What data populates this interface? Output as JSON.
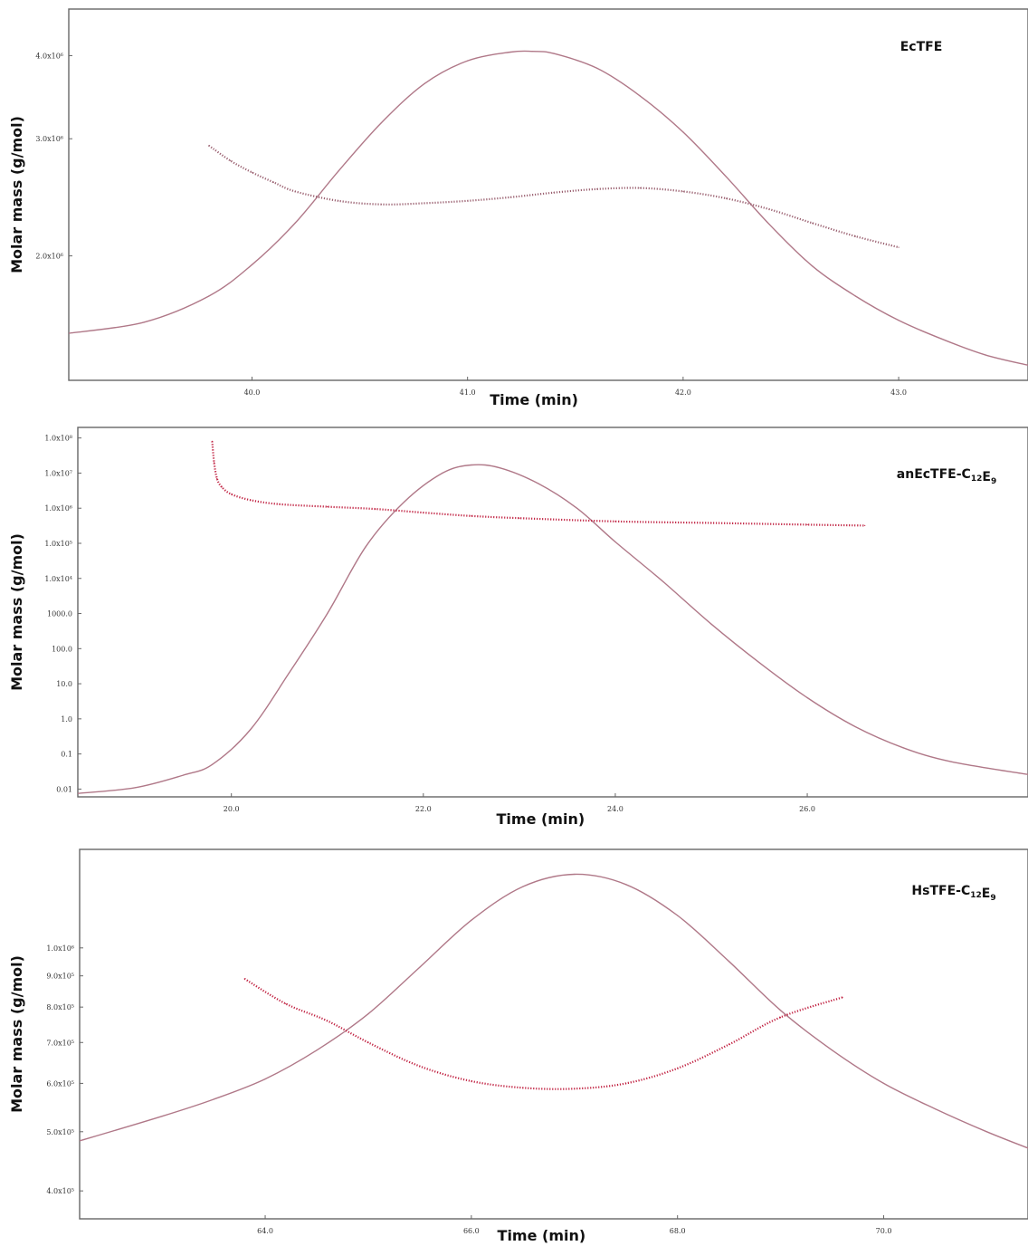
{
  "chart_data": [
    {
      "type": "line",
      "title": "EcTFE",
      "title_parts": [
        {
          "t": "EcTFE",
          "sub": false
        }
      ],
      "xlabel": "Time (min)",
      "ylabel": "Molar mass (g/mol)",
      "x_ticks": [
        {
          "value": 40.0,
          "label": "40.0"
        },
        {
          "value": 41.0,
          "label": "41.0"
        },
        {
          "value": 42.0,
          "label": "42.0"
        },
        {
          "value": 43.0,
          "label": "43.0"
        }
      ],
      "y_ticks": [
        {
          "value": 2000000,
          "label": "2.0x10⁶"
        },
        {
          "value": 3000000,
          "label": "3.0x10⁶"
        },
        {
          "value": 4000000,
          "label": "4.0x10⁶"
        }
      ],
      "y_scale": "log",
      "xlim": [
        39.15,
        43.6
      ],
      "ylim": [
        1300000,
        4700000
      ],
      "series": [
        {
          "role": "signal-trace",
          "color": "#b07888",
          "style": "line",
          "x": [
            39.15,
            39.5,
            39.8,
            40.0,
            40.2,
            40.4,
            40.6,
            40.8,
            41.0,
            41.2,
            41.3,
            41.4,
            41.6,
            41.8,
            42.0,
            42.2,
            42.4,
            42.6,
            42.8,
            43.0,
            43.2,
            43.4,
            43.6
          ],
          "y": [
            1530000,
            1590000,
            1740000,
            1940000,
            2240000,
            2680000,
            3170000,
            3630000,
            3930000,
            4050000,
            4060000,
            4030000,
            3830000,
            3480000,
            3070000,
            2630000,
            2230000,
            1930000,
            1740000,
            1600000,
            1500000,
            1420000,
            1370000
          ]
        },
        {
          "role": "molar-mass",
          "color": "#9a6070",
          "style": "dots",
          "x": [
            39.8,
            39.9,
            40.0,
            40.1,
            40.2,
            40.4,
            40.6,
            40.8,
            41.0,
            41.2,
            41.4,
            41.6,
            41.8,
            42.0,
            42.2,
            42.4,
            42.6,
            42.8,
            43.0
          ],
          "y": [
            2930000,
            2780000,
            2670000,
            2580000,
            2500000,
            2420000,
            2390000,
            2400000,
            2420000,
            2450000,
            2490000,
            2520000,
            2530000,
            2500000,
            2440000,
            2350000,
            2240000,
            2140000,
            2060000
          ]
        }
      ]
    },
    {
      "type": "line",
      "title": "anEcTFE-C12E9",
      "title_parts": [
        {
          "t": "anEcTFE-C",
          "sub": false
        },
        {
          "t": "12",
          "sub": true
        },
        {
          "t": "E",
          "sub": false
        },
        {
          "t": "9",
          "sub": true
        }
      ],
      "xlabel": "Time (min)",
      "ylabel": "Molar mass (g/mol)",
      "x_ticks": [
        {
          "value": 20.0,
          "label": "20.0"
        },
        {
          "value": 22.0,
          "label": "22.0"
        },
        {
          "value": 24.0,
          "label": "24.0"
        },
        {
          "value": 26.0,
          "label": "26.0"
        }
      ],
      "y_ticks": [
        {
          "value": 0.01,
          "label": "0.01"
        },
        {
          "value": 0.1,
          "label": "0.1"
        },
        {
          "value": 1,
          "label": "1.0"
        },
        {
          "value": 10,
          "label": "10.0"
        },
        {
          "value": 100,
          "label": "100.0"
        },
        {
          "value": 1000,
          "label": "1000.0"
        },
        {
          "value": 10000,
          "label": "1.0x10⁴"
        },
        {
          "value": 100000,
          "label": "1.0x10⁵"
        },
        {
          "value": 1000000,
          "label": "1.0x10⁶"
        },
        {
          "value": 10000000,
          "label": "1.0x10⁷"
        },
        {
          "value": 100000000,
          "label": "1.0x10⁸"
        }
      ],
      "y_scale": "log",
      "xlim": [
        18.4,
        28.3
      ],
      "ylim": [
        0.006,
        200000000
      ],
      "series": [
        {
          "role": "signal-trace",
          "color": "#b07888",
          "style": "line",
          "x": [
            18.4,
            19.0,
            19.5,
            19.8,
            20.2,
            20.6,
            21.0,
            21.4,
            21.8,
            22.2,
            22.5,
            22.8,
            23.2,
            23.6,
            24.0,
            24.5,
            25.0,
            25.5,
            26.0,
            26.5,
            27.0,
            27.5,
            28.3
          ],
          "y": [
            0.0075,
            0.011,
            0.025,
            0.05,
            0.5,
            20,
            1000,
            80000,
            1500000,
            10000000,
            17000000,
            14000000,
            5000000,
            1000000,
            110000,
            8000,
            500,
            40,
            4,
            0.6,
            0.15,
            0.06,
            0.026
          ]
        },
        {
          "role": "molar-mass",
          "color": "#c02040",
          "style": "dots",
          "x": [
            19.8,
            19.82,
            19.85,
            19.9,
            20.0,
            20.2,
            20.5,
            21.0,
            21.5,
            22.0,
            22.5,
            23.0,
            24.0,
            25.0,
            26.0,
            26.6
          ],
          "y": [
            80000000,
            20000000,
            7000000,
            4000000,
            2500000,
            1700000,
            1300000,
            1100000,
            950000,
            750000,
            600000,
            520000,
            420000,
            380000,
            340000,
            320000
          ]
        }
      ]
    },
    {
      "type": "line",
      "title": "HsTFE-C12E9",
      "title_parts": [
        {
          "t": "HsTFE-C",
          "sub": false
        },
        {
          "t": "12",
          "sub": true
        },
        {
          "t": "E",
          "sub": false
        },
        {
          "t": "9",
          "sub": true
        }
      ],
      "xlabel": "Time (min)",
      "ylabel": "Molar mass (g/mol)",
      "x_ticks": [
        {
          "value": 64.0,
          "label": "64.0"
        },
        {
          "value": 66.0,
          "label": "66.0"
        },
        {
          "value": 68.0,
          "label": "68.0"
        },
        {
          "value": 70.0,
          "label": "70.0"
        }
      ],
      "y_ticks": [
        {
          "value": 400000,
          "label": "4.0x10⁵"
        },
        {
          "value": 500000,
          "label": "5.0x10⁵"
        },
        {
          "value": 600000,
          "label": "6.0x10⁵"
        },
        {
          "value": 700000,
          "label": "7.0x10⁵"
        },
        {
          "value": 800000,
          "label": "8.0x10⁵"
        },
        {
          "value": 900000,
          "label": "9.0x10⁵"
        },
        {
          "value": 1000000,
          "label": "1.0x10⁶"
        }
      ],
      "y_scale": "log",
      "xlim": [
        62.2,
        71.4
      ],
      "ylim": [
        360000,
        1450000
      ],
      "series": [
        {
          "role": "signal-trace",
          "color": "#b07888",
          "style": "line",
          "x": [
            62.2,
            63.0,
            63.5,
            64.0,
            64.5,
            65.0,
            65.5,
            66.0,
            66.5,
            67.0,
            67.5,
            68.0,
            68.5,
            69.0,
            69.5,
            70.0,
            70.5,
            71.0,
            71.4
          ],
          "y": [
            483000,
            530000,
            565000,
            610000,
            680000,
            780000,
            930000,
            1110000,
            1260000,
            1320000,
            1270000,
            1130000,
            950000,
            790000,
            680000,
            600000,
            545000,
            500000,
            470000
          ]
        },
        {
          "role": "molar-mass",
          "color": "#c02040",
          "style": "dots",
          "x": [
            63.8,
            64.2,
            64.6,
            65.0,
            65.5,
            66.0,
            66.5,
            67.0,
            67.5,
            68.0,
            68.5,
            69.0,
            69.6
          ],
          "y": [
            890000,
            810000,
            760000,
            700000,
            640000,
            605000,
            590000,
            588000,
            600000,
            635000,
            695000,
            770000,
            830000
          ]
        }
      ]
    }
  ]
}
